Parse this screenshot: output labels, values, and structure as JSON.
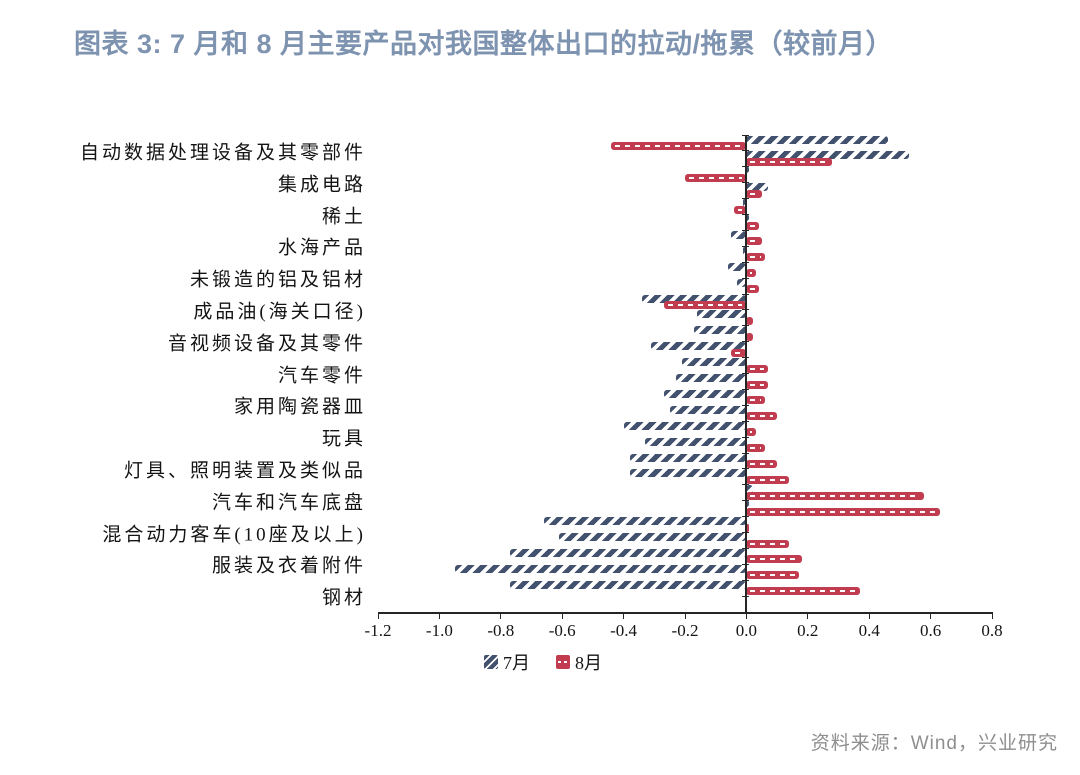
{
  "header": {
    "title": "图表 3:  7 月和 8 月主要产品对我国整体出口的拉动/拖累（较前月）",
    "title_color": "#7E93B0"
  },
  "chart_data": {
    "type": "bar",
    "orientation": "horizontal",
    "xlim": [
      -1.2,
      0.8
    ],
    "x_ticks": [
      "-1.2",
      "-1.0",
      "-0.8",
      "-0.6",
      "-0.4",
      "-0.2",
      "0.0",
      "0.2",
      "0.4",
      "0.6",
      "0.8"
    ],
    "grid": false,
    "legend_position": "bottom",
    "series": [
      {
        "name": "7月",
        "color": "#42516E",
        "pattern": "diagonal-dash"
      },
      {
        "name": "8月",
        "color": "#C23C50",
        "pattern": "white-dash"
      }
    ],
    "note": "rows with empty label are unlabeled intermediate bars visible in the chart (axis shows every other category label)",
    "rows": [
      {
        "label": "自动数据处理设备及其零部件",
        "jul": 0.46,
        "aug": -0.44
      },
      {
        "label": "",
        "jul": 0.53,
        "aug": 0.28
      },
      {
        "label": "集成电路",
        "jul": 0.01,
        "aug": -0.2
      },
      {
        "label": "",
        "jul": 0.07,
        "aug": 0.05
      },
      {
        "label": "稀土",
        "jul": -0.01,
        "aug": -0.04
      },
      {
        "label": "",
        "jul": 0.01,
        "aug": 0.04
      },
      {
        "label": "水海产品",
        "jul": -0.05,
        "aug": 0.05
      },
      {
        "label": "",
        "jul": -0.01,
        "aug": 0.06
      },
      {
        "label": "未锻造的铝及铝材",
        "jul": -0.06,
        "aug": 0.03
      },
      {
        "label": "",
        "jul": -0.03,
        "aug": 0.04
      },
      {
        "label": "成品油(海关口径)",
        "jul": -0.34,
        "aug": -0.27
      },
      {
        "label": "",
        "jul": -0.16,
        "aug": 0.02
      },
      {
        "label": "音视频设备及其零件",
        "jul": -0.17,
        "aug": 0.02
      },
      {
        "label": "",
        "jul": -0.31,
        "aug": -0.05
      },
      {
        "label": "汽车零件",
        "jul": -0.21,
        "aug": 0.07
      },
      {
        "label": "",
        "jul": -0.23,
        "aug": 0.07
      },
      {
        "label": "家用陶瓷器皿",
        "jul": -0.27,
        "aug": 0.06
      },
      {
        "label": "",
        "jul": -0.25,
        "aug": 0.1
      },
      {
        "label": "玩具",
        "jul": -0.4,
        "aug": 0.03
      },
      {
        "label": "",
        "jul": -0.33,
        "aug": 0.06
      },
      {
        "label": "灯具、照明装置及类似品",
        "jul": -0.38,
        "aug": 0.1
      },
      {
        "label": "",
        "jul": -0.38,
        "aug": 0.14
      },
      {
        "label": "汽车和汽车底盘",
        "jul": 0.02,
        "aug": 0.58
      },
      {
        "label": "",
        "jul": 0.01,
        "aug": 0.63
      },
      {
        "label": "混合动力客车(10座及以上)",
        "jul": -0.66,
        "aug": 0.01
      },
      {
        "label": "",
        "jul": -0.61,
        "aug": 0.14
      },
      {
        "label": "服装及衣着附件",
        "jul": -0.77,
        "aug": 0.18
      },
      {
        "label": "",
        "jul": -0.95,
        "aug": 0.17
      },
      {
        "label": "钢材",
        "jul": -0.77,
        "aug": 0.37
      },
      {
        "label": "",
        "jul": 0.0,
        "aug": 0.0
      }
    ]
  },
  "footer": {
    "source": "资料来源：Wind，兴业研究"
  }
}
